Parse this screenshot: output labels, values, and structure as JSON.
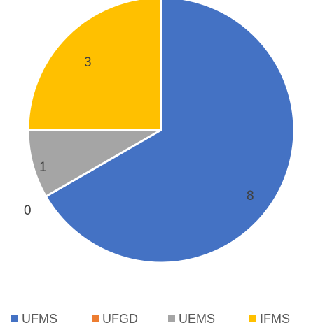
{
  "chart_data": {
    "type": "pie",
    "categories": [
      "UFMS",
      "UFGD",
      "UEMS",
      "IFMS"
    ],
    "values": [
      8,
      0,
      1,
      3
    ],
    "data_labels": [
      "8",
      "0",
      "1",
      "3"
    ],
    "colors": [
      "#4472C4",
      "#ED7D31",
      "#A5A5A5",
      "#FFC000"
    ],
    "legend_position": "bottom",
    "start_angle_deg": 0,
    "direction": "clockwise"
  }
}
